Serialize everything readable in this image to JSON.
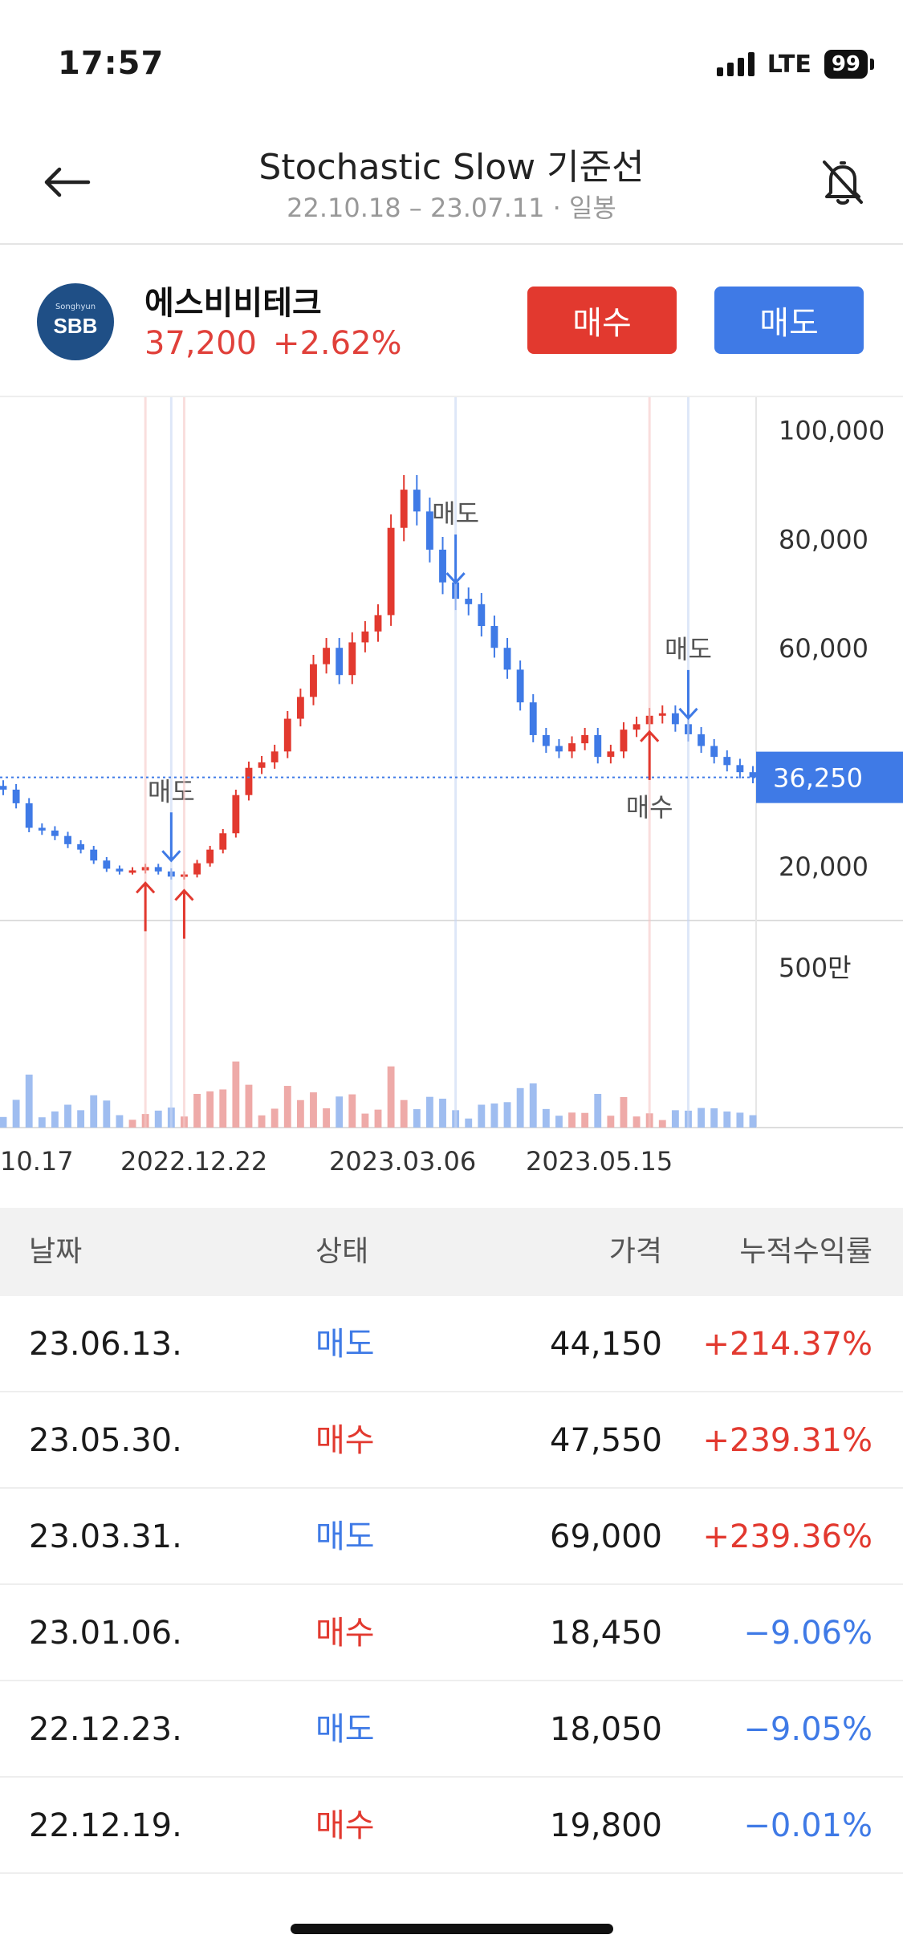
{
  "status_bar": {
    "time": "17:57",
    "network": "LTE",
    "battery": "99"
  },
  "header": {
    "title": "Stochastic Slow 기준선",
    "subtitle": "22.10.18 – 23.07.11 · 일봉",
    "back_icon": "arrow-left-icon",
    "alert_icon": "bell-off-icon"
  },
  "stock": {
    "logo_small": "Songhyun",
    "logo_text": "SBB",
    "name": "에스비비테크",
    "price": "37,200",
    "change": "+2.62%",
    "buy_label": "매수",
    "sell_label": "매도"
  },
  "colors": {
    "up": "#e2392f",
    "down": "#3f7ae6",
    "current_price": "#3f7ae6"
  },
  "chart_data": {
    "type": "candlestick",
    "y_ticks": [
      "100,000",
      "80,000",
      "60,000",
      "20,000"
    ],
    "y_tick_values": [
      100000,
      80000,
      60000,
      20000
    ],
    "ylim": [
      10000,
      103000
    ],
    "current_price_label": "36,250",
    "current_price": 36250,
    "x_labels": [
      "10.17",
      "2022.12.22",
      "2023.03.06",
      "2023.05.15"
    ],
    "volume_tick": "500만",
    "volume_tick_value": 5000000,
    "signals": [
      {
        "type": "buy",
        "label": "매수",
        "price": 19800,
        "label_visible": false
      },
      {
        "type": "sell",
        "label": "매도",
        "price": 18050,
        "label_visible": true
      },
      {
        "type": "buy",
        "label": "매수",
        "price": 18450,
        "label_visible": false
      },
      {
        "type": "sell",
        "label": "매도",
        "price": 69000,
        "label_visible": true
      },
      {
        "type": "buy",
        "label": "매수",
        "price": 47550,
        "label_visible": true
      },
      {
        "type": "sell",
        "label": "매도",
        "price": 44150,
        "label_visible": true
      }
    ],
    "close_series": [
      34000,
      31500,
      27000,
      26500,
      25500,
      24000,
      23000,
      21000,
      19500,
      19000,
      19200,
      19800,
      19000,
      18050,
      18450,
      20500,
      23000,
      26000,
      33000,
      38000,
      39000,
      41000,
      47000,
      51000,
      57000,
      60000,
      55000,
      61000,
      63000,
      66000,
      82000,
      89000,
      85000,
      78000,
      72000,
      69000,
      68000,
      64000,
      60000,
      56000,
      50000,
      44000,
      42000,
      41000,
      42500,
      44000,
      40000,
      41000,
      45000,
      46000,
      47550,
      48000,
      46000,
      44150,
      42000,
      40000,
      38500,
      37200,
      36250
    ]
  },
  "table": {
    "headers": {
      "date": "날짜",
      "state": "상태",
      "price": "가격",
      "return": "누적수익률"
    },
    "rows": [
      {
        "date": "23.06.13.",
        "state": "매도",
        "kind": "sell",
        "price": "44,150",
        "return": "+214.37%",
        "sign": "pos"
      },
      {
        "date": "23.05.30.",
        "state": "매수",
        "kind": "buy",
        "price": "47,550",
        "return": "+239.31%",
        "sign": "pos"
      },
      {
        "date": "23.03.31.",
        "state": "매도",
        "kind": "sell",
        "price": "69,000",
        "return": "+239.36%",
        "sign": "pos"
      },
      {
        "date": "23.01.06.",
        "state": "매수",
        "kind": "buy",
        "price": "18,450",
        "return": "−9.06%",
        "sign": "neg"
      },
      {
        "date": "22.12.23.",
        "state": "매도",
        "kind": "sell",
        "price": "18,050",
        "return": "−9.05%",
        "sign": "neg"
      },
      {
        "date": "22.12.19.",
        "state": "매수",
        "kind": "buy",
        "price": "19,800",
        "return": "−0.01%",
        "sign": "neg"
      }
    ]
  }
}
